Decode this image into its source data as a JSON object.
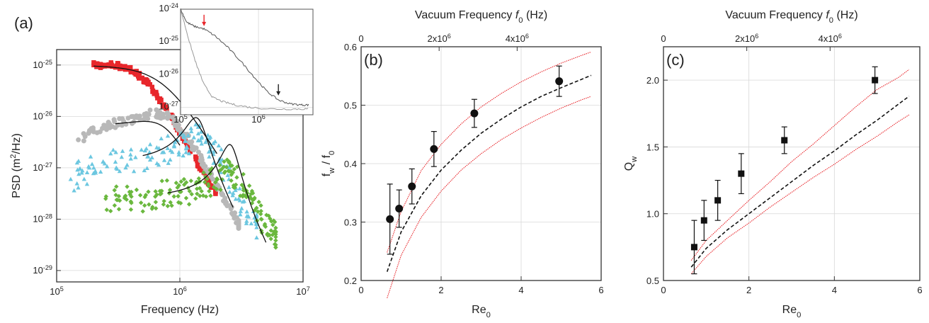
{
  "chart_data": [
    {
      "panel_label": "(a)",
      "type": "scatter",
      "xlabel": "Frequency (Hz)",
      "ylabel": "PSD (m2/Hz)",
      "ylabel_parts": {
        "base": "PSD (m",
        "sup": "2",
        "rest": "/Hz)"
      },
      "xscale": "log",
      "yscale": "log",
      "xlim": [
        100000,
        10000000
      ],
      "ylim": [
        6e-30,
        2e-25
      ],
      "x_ticks": [
        100000,
        1000000,
        10000000
      ],
      "x_tick_labels": [
        {
          "base": "10",
          "exp": "5"
        },
        {
          "base": "10",
          "exp": "6"
        },
        {
          "base": "10",
          "exp": "7"
        }
      ],
      "y_ticks": [
        1e-29,
        1e-28,
        1e-27,
        1e-26,
        1e-25
      ],
      "y_tick_labels": [
        {
          "base": "10",
          "exp": "-29"
        },
        {
          "base": "10",
          "exp": "-28"
        },
        {
          "base": "10",
          "exp": "-27"
        },
        {
          "base": "10",
          "exp": "-26"
        },
        {
          "base": "10",
          "exp": "-25"
        }
      ],
      "grid": true,
      "colors": {
        "red": "#e8262b",
        "gray": "#b8b8b8",
        "cyan": "#6cc7e0",
        "green": "#6ab83e",
        "fit": "#111111"
      },
      "series": [
        {
          "color": "red",
          "marker": "square",
          "points": [
            [
              200000,
              1e-25
            ],
            [
              240000,
              1e-25
            ],
            [
              280000,
              1e-25
            ],
            [
              330000,
              9.5e-26
            ],
            [
              390000,
              8.5e-26
            ],
            [
              460000,
              6.5e-26
            ],
            [
              540000,
              4.5e-26
            ],
            [
              630000,
              2.8e-26
            ],
            [
              740000,
              1.7e-26
            ],
            [
              870000,
              9e-27
            ],
            [
              1000000,
              4.8e-27
            ],
            [
              1200000,
              2.5e-27
            ],
            [
              1400000,
              1.2e-27
            ],
            [
              1650000,
              6e-28
            ],
            [
              1950000,
              3.5e-28
            ]
          ],
          "fit": {
            "range": [
              200000,
              2000000
            ],
            "A": 1e-25,
            "f0": 760000,
            "Q": 0.62
          }
        },
        {
          "color": "gray",
          "marker": "circle",
          "points": [
            [
              150000,
              3.5e-27
            ],
            [
              200000,
              5e-27
            ],
            [
              270000,
              7e-27
            ],
            [
              350000,
              8e-27
            ],
            [
              450000,
              9.5e-27
            ],
            [
              560000,
              1.1e-26
            ],
            [
              680000,
              1.15e-26
            ],
            [
              800000,
              1e-26
            ],
            [
              950000,
              7e-27
            ],
            [
              1100000,
              4.5e-27
            ],
            [
              1300000,
              2.5e-27
            ],
            [
              1550000,
              1.2e-27
            ],
            [
              1850000,
              6e-28
            ],
            [
              2200000,
              3e-28
            ],
            [
              2600000,
              1.6e-28
            ],
            [
              3000000,
              8e-29
            ]
          ],
          "fit": {
            "range": [
              300000,
              1000000
            ],
            "A": 6.4e-27,
            "f0": 770000,
            "Q": 0.95
          }
        },
        {
          "color": "cyan",
          "marker": "triangle",
          "points": [
            [
              130000,
              6e-28
            ],
            [
              160000,
              8e-28
            ],
            [
              200000,
              1e-27
            ],
            [
              300000,
              1.3e-27
            ],
            [
              400000,
              1.5e-27
            ],
            [
              550000,
              1.7e-27
            ],
            [
              720000,
              2e-27
            ],
            [
              900000,
              2.6e-27
            ],
            [
              1100000,
              3.3e-27
            ],
            [
              1300000,
              3.9e-27
            ],
            [
              1500000,
              3.8e-27
            ],
            [
              1750000,
              3e-27
            ],
            [
              2100000,
              1.5e-27
            ],
            [
              2500000,
              6e-28
            ],
            [
              3000000,
              2.5e-28
            ],
            [
              3500000,
              1.4e-28
            ],
            [
              4200000,
              8e-29
            ]
          ],
          "fit": {
            "range": [
              500000,
              2700000
            ],
            "A": 1.35e-27,
            "f0": 1400000,
            "Q": 2.6
          }
        },
        {
          "color": "green",
          "marker": "diamond",
          "points": [
            [
              250000,
              2.5e-28
            ],
            [
              320000,
              2.8e-28
            ],
            [
              400000,
              2.2e-28
            ],
            [
              520000,
              2.7e-28
            ],
            [
              650000,
              3e-28
            ],
            [
              820000,
              3.2e-28
            ],
            [
              1000000,
              3.4e-28
            ],
            [
              1200000,
              3.5e-28
            ],
            [
              1450000,
              4e-28
            ],
            [
              1700000,
              4.8e-28
            ],
            [
              2000000,
              6e-28
            ],
            [
              2300000,
              8e-28
            ],
            [
              2600000,
              8.5e-28
            ],
            [
              2900000,
              6.5e-28
            ],
            [
              3300000,
              4e-28
            ],
            [
              3800000,
              2.5e-28
            ],
            [
              4300000,
              1.4e-28
            ],
            [
              4900000,
              8e-29
            ],
            [
              5500000,
              6e-29
            ],
            [
              6000000,
              4.5e-29
            ]
          ],
          "fit": {
            "range": [
              800000,
              5000000
            ],
            "A": 2.7e-28,
            "f0": 2600000,
            "Q": 3.2
          }
        }
      ],
      "inset": {
        "xscale": "log",
        "yscale": "log",
        "xlim": [
          100000,
          5000000
        ],
        "ylim": [
          6e-28,
          1e-24
        ],
        "x_tick_labels": [
          {
            "base": "10",
            "exp": "5"
          },
          {
            "base": "10",
            "exp": "6"
          }
        ],
        "y_tick_labels": [
          {
            "base": "10",
            "exp": "-24"
          },
          {
            "base": "10",
            "exp": "-25"
          },
          {
            "base": "10",
            "exp": "-26"
          },
          {
            "base": "10",
            "exp": "-27"
          }
        ],
        "curves": [
          {
            "color": "#555555",
            "points": [
              [
                100000,
                1e-24
              ],
              [
                120000,
                4e-25
              ],
              [
                150000,
                3e-25
              ],
              [
                200000,
                2.5e-25
              ],
              [
                280000,
                1.5e-25
              ],
              [
                400000,
                7e-26
              ],
              [
                600000,
                2.5e-26
              ],
              [
                900000,
                8e-27
              ],
              [
                1300000,
                3e-27
              ],
              [
                1800000,
                1.7e-27
              ],
              [
                2500000,
                1.3e-27
              ],
              [
                3500000,
                1.2e-27
              ],
              [
                4500000,
                1.2e-27
              ]
            ]
          },
          {
            "color": "#9a9a9a",
            "points": [
              [
                100000,
                1e-24
              ],
              [
                130000,
                1e-25
              ],
              [
                160000,
                2e-26
              ],
              [
                200000,
                5e-27
              ],
              [
                260000,
                2e-27
              ],
              [
                350000,
                1.5e-27
              ],
              [
                500000,
                1.2e-27
              ],
              [
                800000,
                1e-27
              ],
              [
                1500000,
                9e-28
              ],
              [
                3000000,
                9e-28
              ],
              [
                4500000,
                9e-28
              ]
            ]
          }
        ],
        "arrows": [
          {
            "color": "#e8262b",
            "x": 200000,
            "y": 2.5e-25
          },
          {
            "color": "#222222",
            "x": 1800000,
            "y": 1.9e-27
          }
        ]
      }
    },
    {
      "panel_label": "(b)",
      "type": "scatter",
      "xlabel": "Re0",
      "xlabel_parts": {
        "base": "Re",
        "sub": "0"
      },
      "ylabel": "fw / f0",
      "ylabel_parts": {
        "a": "f",
        "asub": "w",
        "mid": " / f",
        "bsub": "0"
      },
      "top_axis_label": "Vacuum Frequency f0 (Hz)",
      "top_axis_label_parts": {
        "base": "Vacuum Frequency ",
        "ital": "f",
        "sub": "0",
        "rest": " (Hz)"
      },
      "top_ticks": [
        {
          "x": 0,
          "label": "0"
        },
        {
          "x": 1.95,
          "label": "2x10",
          "exp": "6"
        },
        {
          "x": 3.9,
          "label": "4x10",
          "exp": "6"
        }
      ],
      "xlim": [
        0,
        6
      ],
      "ylim": [
        0.2,
        0.6
      ],
      "x_ticks": [
        0,
        2,
        4,
        6
      ],
      "y_ticks": [
        0.2,
        0.3,
        0.4,
        0.5,
        0.6
      ],
      "y_tick_labels": [
        "0.2",
        "0.3",
        "0.4",
        "0.5",
        "0.6"
      ],
      "grid": true,
      "points": {
        "x": [
          0.72,
          0.95,
          1.27,
          1.82,
          2.83,
          4.95
        ],
        "y": [
          0.305,
          0.323,
          0.361,
          0.425,
          0.486,
          0.541
        ],
        "err": [
          0.06,
          0.032,
          0.03,
          0.03,
          0.024,
          0.026
        ],
        "marker": "circle"
      },
      "curves": [
        {
          "style": "dashed",
          "color": "#111111",
          "points": [
            [
              0.65,
              0.215
            ],
            [
              1.0,
              0.283
            ],
            [
              1.5,
              0.345
            ],
            [
              2.0,
              0.389
            ],
            [
              2.5,
              0.423
            ],
            [
              3.0,
              0.452
            ],
            [
              3.5,
              0.476
            ],
            [
              4.0,
              0.497
            ],
            [
              4.5,
              0.515
            ],
            [
              5.0,
              0.53
            ],
            [
              5.5,
              0.544
            ],
            [
              5.75,
              0.551
            ]
          ]
        },
        {
          "style": "dotted",
          "color": "#e8262b",
          "points": [
            [
              0.65,
              0.248
            ],
            [
              1.0,
              0.318
            ],
            [
              1.5,
              0.388
            ],
            [
              2.0,
              0.433
            ],
            [
              2.5,
              0.468
            ],
            [
              3.0,
              0.497
            ],
            [
              3.5,
              0.52
            ],
            [
              4.0,
              0.54
            ],
            [
              4.5,
              0.557
            ],
            [
              5.0,
              0.572
            ],
            [
              5.5,
              0.585
            ],
            [
              5.75,
              0.591
            ]
          ]
        },
        {
          "style": "dotted",
          "color": "#e8262b",
          "points": [
            [
              0.65,
              0.17
            ],
            [
              1.0,
              0.243
            ],
            [
              1.5,
              0.308
            ],
            [
              2.0,
              0.353
            ],
            [
              2.5,
              0.389
            ],
            [
              3.0,
              0.417
            ],
            [
              3.5,
              0.441
            ],
            [
              4.0,
              0.461
            ],
            [
              4.5,
              0.479
            ],
            [
              5.0,
              0.495
            ],
            [
              5.5,
              0.509
            ],
            [
              5.75,
              0.515
            ]
          ]
        }
      ]
    },
    {
      "panel_label": "(c)",
      "type": "scatter",
      "xlabel": "Re0",
      "xlabel_parts": {
        "base": "Re",
        "sub": "0"
      },
      "ylabel": "Qw",
      "ylabel_parts": {
        "a": "Q",
        "asub": "w"
      },
      "top_axis_label": "Vacuum Frequency f0 (Hz)",
      "top_axis_label_parts": {
        "base": "Vacuum Frequency ",
        "ital": "f",
        "sub": "0",
        "rest": " (Hz)"
      },
      "top_ticks": [
        {
          "x": 0,
          "label": "0"
        },
        {
          "x": 1.95,
          "label": "2x10",
          "exp": "6"
        },
        {
          "x": 3.9,
          "label": "4x10",
          "exp": "6"
        }
      ],
      "xlim": [
        0,
        6
      ],
      "ylim": [
        0.5,
        2.25
      ],
      "x_ticks": [
        0,
        2,
        4,
        6
      ],
      "y_ticks": [
        0.5,
        1.0,
        1.5,
        2.0
      ],
      "y_tick_labels": [
        "0.5",
        "1.0",
        "1.5",
        "2.0"
      ],
      "grid": true,
      "points": {
        "x": [
          0.72,
          0.95,
          1.27,
          1.82,
          2.83,
          4.95
        ],
        "y": [
          0.75,
          0.95,
          1.1,
          1.3,
          1.55,
          2.0
        ],
        "err": [
          0.2,
          0.15,
          0.15,
          0.15,
          0.1,
          0.1
        ],
        "marker": "square"
      },
      "curves": [
        {
          "style": "dashed",
          "color": "#111111",
          "points": [
            [
              0.65,
              0.6
            ],
            [
              1.0,
              0.74
            ],
            [
              1.5,
              0.88
            ],
            [
              2.0,
              1.0
            ],
            [
              2.5,
              1.12
            ],
            [
              3.0,
              1.24
            ],
            [
              3.5,
              1.36
            ],
            [
              4.0,
              1.47
            ],
            [
              4.5,
              1.59
            ],
            [
              5.0,
              1.7
            ],
            [
              5.5,
              1.82
            ],
            [
              5.75,
              1.88
            ]
          ]
        },
        {
          "style": "dotted",
          "color": "#e8262b",
          "points": [
            [
              0.65,
              0.65
            ],
            [
              1.0,
              0.8
            ],
            [
              1.5,
              0.95
            ],
            [
              2.0,
              1.1
            ],
            [
              2.5,
              1.24
            ],
            [
              3.0,
              1.39
            ],
            [
              3.5,
              1.52
            ],
            [
              4.0,
              1.66
            ],
            [
              4.5,
              1.8
            ],
            [
              5.0,
              1.93
            ],
            [
              5.5,
              2.02
            ],
            [
              5.75,
              2.08
            ]
          ]
        },
        {
          "style": "dotted",
          "color": "#e8262b",
          "points": [
            [
              0.65,
              0.55
            ],
            [
              1.0,
              0.68
            ],
            [
              1.5,
              0.82
            ],
            [
              2.0,
              0.93
            ],
            [
              2.5,
              1.05
            ],
            [
              3.0,
              1.16
            ],
            [
              3.5,
              1.27
            ],
            [
              4.0,
              1.37
            ],
            [
              4.5,
              1.48
            ],
            [
              5.0,
              1.58
            ],
            [
              5.5,
              1.69
            ],
            [
              5.75,
              1.74
            ]
          ]
        }
      ]
    }
  ]
}
